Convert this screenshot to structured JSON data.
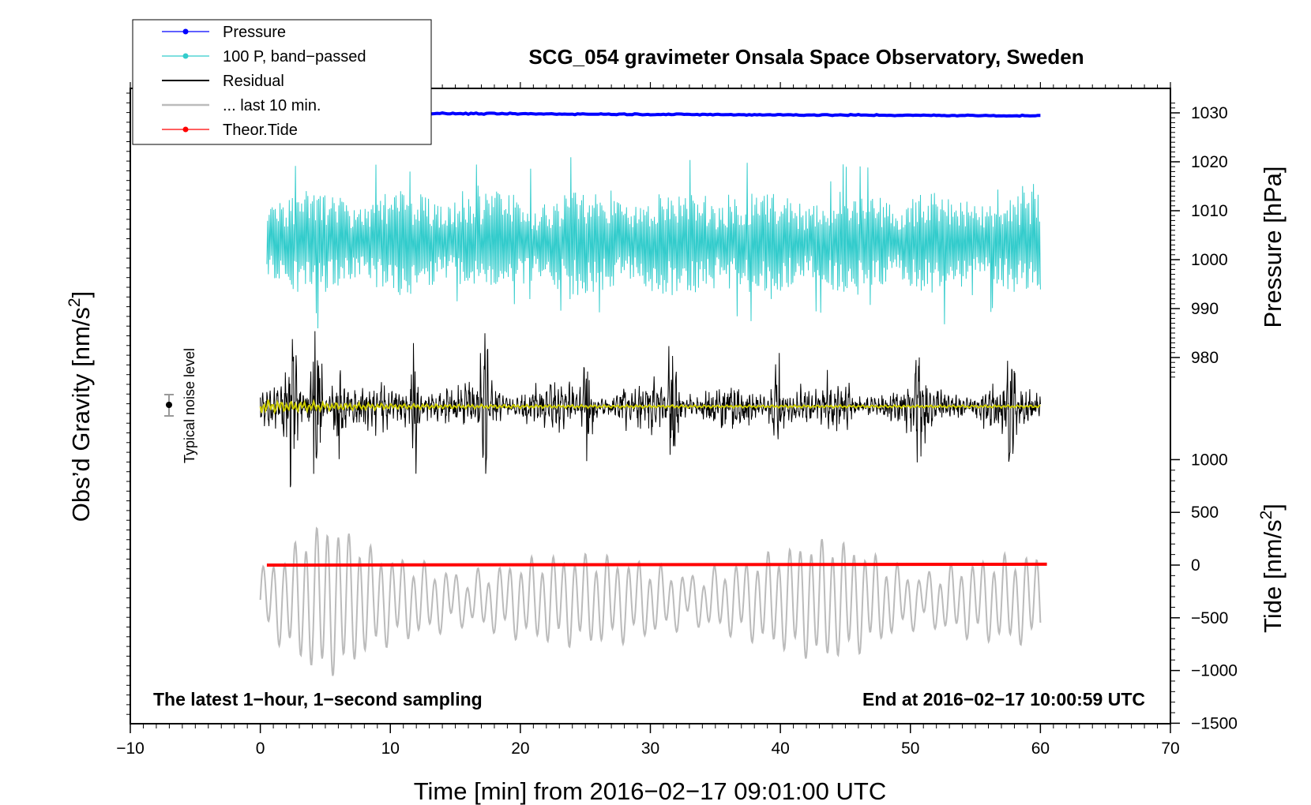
{
  "chart_data": {
    "type": "line",
    "title": "SCG_054 gravimeter Onsala Space Observatory, Sweden",
    "xlabel": "Time [min] from 2016−02−17 09:01:00 UTC",
    "xlim": [
      -10,
      70
    ],
    "xticks": [
      -10,
      0,
      10,
      20,
      30,
      40,
      50,
      60,
      70
    ],
    "xtick_labels": [
      "−10",
      "0",
      "10",
      "20",
      "30",
      "40",
      "50",
      "60",
      "70"
    ],
    "left_axis": {
      "label_main": "Obs’d Gravity [nm/s",
      "label_sup": "2",
      "label_end": "]"
    },
    "pressure_axis": {
      "label": "Pressure [hPa]",
      "range": [
        976,
        1032
      ],
      "ticks": [
        980,
        990,
        1000,
        1010,
        1020,
        1030
      ],
      "tick_labels": [
        "980",
        "990",
        "1000",
        "1010",
        "1020",
        "1030"
      ]
    },
    "tide_axis": {
      "label_main": "Tide [nm/s",
      "label_sup": "2",
      "label_end": "]",
      "range": [
        -1500,
        1000
      ],
      "ticks": [
        -1500,
        -1000,
        -500,
        0,
        500,
        1000
      ],
      "tick_labels": [
        "−1500",
        "−1000",
        "−500",
        "0",
        "500",
        "1000"
      ]
    },
    "series": [
      {
        "name": "Pressure",
        "color": "#0000ff",
        "axis": "pressure",
        "x_range": [
          0,
          60
        ],
        "values_summary": "steady 1030.0 falling to 1029.3"
      },
      {
        "name": "100 P, band−passed",
        "color": "#33cccc",
        "axis": "pressure",
        "x_range": [
          0,
          60
        ],
        "values_summary": "oscillating approx 985–1020 about 1003"
      },
      {
        "name": "Residual",
        "color": "#000000",
        "axis": "gravity",
        "x_range": [
          0,
          60
        ],
        "values_summary": "noisy signal about baseline"
      },
      {
        "name": "... last 10 min.",
        "color": "#bbbbbb",
        "axis": "tide",
        "x_range": [
          0,
          60
        ],
        "values_summary": "oscillating approx −1200 to 500 nm/s2"
      },
      {
        "name": "Theor.Tide",
        "color": "#ff0000",
        "axis": "tide",
        "x_range": [
          0.5,
          60.5
        ],
        "values": [
          [
            0.5,
            0
          ],
          [
            60.5,
            8
          ]
        ]
      }
    ],
    "legend": {
      "placement": "top-left",
      "entries": [
        "Pressure",
        "100 P, band−passed",
        "Residual",
        "... last 10 min.",
        "Theor.Tide"
      ]
    },
    "annotations": {
      "noise_label": "Typical noise level",
      "bottom_left": "The latest 1−hour, 1−second sampling",
      "bottom_right": "End at 2016−02−17 10:00:59 UTC"
    }
  },
  "colors": {
    "pressure": "#0000ff",
    "bandpassed": "#33cccc",
    "residual": "#000000",
    "last10": "#bbbbbb",
    "tide": "#ff0000",
    "smoothed": "#cccc00"
  }
}
